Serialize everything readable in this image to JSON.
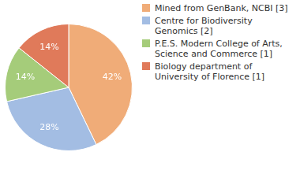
{
  "chart_data": {
    "type": "pie",
    "categories": [
      "Mined from GenBank, NCBI [3]",
      "Centre for Biodiversity Genomics [2]",
      "P.E.S. Modern College of Arts, Science and Commerce [1]",
      "Biology department of University of Florence [1]"
    ],
    "values": [
      42,
      28,
      14,
      14
    ],
    "value_labels": [
      "42%",
      "28%",
      "14%",
      "14%"
    ],
    "colors": [
      "#f0ac78",
      "#a3bde3",
      "#a5cc7a",
      "#e07a5a"
    ],
    "data_labels": true,
    "legend": "right"
  }
}
